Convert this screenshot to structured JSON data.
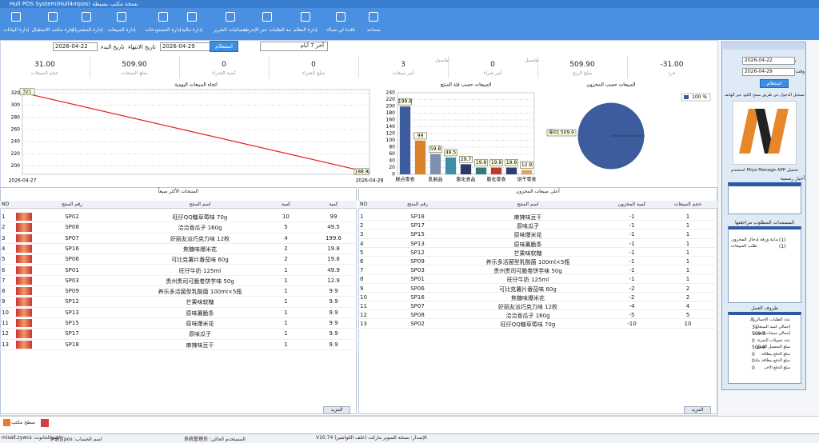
{
  "window_title": "Hull POS System(Hull4mpos) نسخة مكتب بسيطة",
  "toolbar": [
    "إدارة البيانات",
    "إدارة مكتب الاستقبال",
    "إدارة المشتريات",
    "إدارة المبيعات",
    "إدارة المستودعات",
    "إدارة مالية",
    "إحصائيات التقرير",
    "منصة الطلبات عبر الإنترنت",
    "إدارة النظام",
    "نافذة لي شباك",
    "مساعد"
  ],
  "filter": {
    "start_label": "تاريخ البدء",
    "start": "2026-04-22",
    "end_label": "تاريخ الانتهاء",
    "end": "2026-04-29",
    "query": "استعلام",
    "range": "آخر 7 أيام"
  },
  "stats": [
    {
      "value": "31.00",
      "label": "حجم المبيعات"
    },
    {
      "value": "509.90",
      "label": "مبلغ المبيعات"
    },
    {
      "value": "0",
      "label": "كمية الشراء"
    },
    {
      "value": "0",
      "label": "مبلغ الشراء"
    },
    {
      "value": "3",
      "label": "أمر مبيعات",
      "detail": "تفاصيل"
    },
    {
      "value": "0",
      "label": "أمر شراء",
      "detail": "تفاصيل"
    },
    {
      "value": "509.90",
      "label": "مبلغ الربح"
    },
    {
      "value": "-31.00",
      "label": "جرد"
    }
  ],
  "chart_data": [
    {
      "type": "line",
      "title": "اتجاه المبيعات اليومية",
      "categories": [
        "2026-04-27",
        "2026-04-28"
      ],
      "values": [
        321,
        188.9
      ],
      "color": "#e02020",
      "ylim": [
        186,
        326
      ],
      "yticks": [
        200,
        220,
        240,
        260,
        280,
        300,
        320
      ],
      "grid": true
    },
    {
      "type": "bar",
      "title": "المبيعات حسب فئة المنتج",
      "categories": [
        "糕点零食",
        null,
        "乳制品",
        null,
        "膨化食品",
        null,
        "膨化零食",
        null,
        "饼干零食"
      ],
      "values": [
        199.6,
        99,
        59.8,
        49.5,
        29.7,
        19.8,
        19.8,
        19.8,
        12.9
      ],
      "colors": [
        "#3d5c9e",
        "#d9822b",
        "#7f8fb0",
        "#3f8ea8",
        "#2b3a6b",
        "#2d7e7a",
        "#c0392b",
        "#2c3e70",
        "#e3a35a"
      ],
      "ylim": [
        0,
        240
      ],
      "yticks": [
        0,
        20,
        40,
        60,
        80,
        100,
        120,
        140,
        160,
        180,
        200,
        220,
        240
      ],
      "grid": true
    },
    {
      "type": "pie",
      "title": "المبيعات حسب المخزون",
      "categories": [
        "库01"
      ],
      "values": [
        100
      ],
      "value_labels": [
        "100 %"
      ],
      "amounts": [
        509.9
      ],
      "colors": [
        "#3d5c9e"
      ]
    }
  ],
  "top_products": {
    "title": "المنتجات الأكثر مبيعاً",
    "headers": [
      "NO",
      "رقم المنتج",
      "اسم المنتج",
      "كمية",
      "كمية"
    ],
    "rows": [
      [
        1,
        "SP02",
        "旺仔QQ糖草莓味 70g",
        10,
        99
      ],
      [
        2,
        "SP08",
        "洽洽香瓜子 160g",
        5,
        49.5
      ],
      [
        3,
        "SP07",
        "好丽友派巧克力味 12枚",
        4,
        199.6
      ],
      [
        4,
        "SP16",
        "焦糖味爆米花",
        2,
        19.8
      ],
      [
        5,
        "SP06",
        "可比克薯片番茄味 60g",
        2,
        19.8
      ],
      [
        6,
        "SP01",
        "旺仔牛奶 125ml",
        1,
        49.9
      ],
      [
        7,
        "SP03",
        "贵州贵司可脆卷饼芋味 50g",
        1,
        12.9
      ],
      [
        8,
        "SP09",
        "养乐多活菌型乳酸菌 100ml×5瓶",
        1,
        9.9
      ],
      [
        9,
        "SP12",
        "芒果味软糖",
        1,
        9.9
      ],
      [
        10,
        "SP13",
        "原味薯脆条",
        1,
        9.9
      ],
      [
        11,
        "SP15",
        "原味爆米花",
        1,
        9.9
      ],
      [
        12,
        "SP17",
        "原味瓜子",
        1,
        9.9
      ],
      [
        13,
        "SP18",
        "麻辣味豆干",
        1,
        9.9
      ]
    ],
    "more": "المزيد"
  },
  "stock_table": {
    "title": "أعلى مبيعات المخزون",
    "headers": [
      "NO",
      "رقم المنتج",
      "اسم المنتج",
      "كمية المخزون",
      "حجم المبيعات"
    ],
    "rows": [
      [
        1,
        "SP18",
        "麻辣味豆干",
        -1,
        1
      ],
      [
        2,
        "SP17",
        "原味瓜子",
        -1,
        1
      ],
      [
        3,
        "SP15",
        "原味爆米花",
        -1,
        1
      ],
      [
        4,
        "SP13",
        "原味薯脆条",
        -1,
        1
      ],
      [
        5,
        "SP12",
        "芒果味软糖",
        -1,
        1
      ],
      [
        6,
        "SP09",
        "养乐多活菌型乳酸菌 100ml×5瓶",
        -1,
        1
      ],
      [
        7,
        "SP03",
        "贵州贵司可脆卷饼芋味 50g",
        -1,
        1
      ],
      [
        8,
        "SP01",
        "旺仔牛奶 125ml",
        -1,
        1
      ],
      [
        9,
        "SP06",
        "可比克薯片番茄味 60g",
        -2,
        2
      ],
      [
        10,
        "SP16",
        "焦糖味爆米花",
        -2,
        2
      ],
      [
        11,
        "SP07",
        "好丽友派巧克力味 12枚",
        -4,
        4
      ],
      [
        12,
        "SP08",
        "洽洽香瓜子 160g",
        -5,
        5
      ],
      [
        13,
        "SP02",
        "旺仔QQ糖草莓味 70g",
        -10,
        10
      ]
    ],
    "more": "المزيد"
  },
  "sidebar": {
    "start_label": "وقت البدء",
    "start": "2026-04-22",
    "end_label": "وقت النهاية",
    "end": "2026-04-29",
    "query": "استعلام",
    "scan": "تسجيل الدخول عن طريق مسح الكود عبر الهاتف المحمول",
    "app": "تحميل Miya Manage APP استخدم",
    "news": "أخبار رسمية",
    "review_title": "المستندات المطلوب مراجعتها",
    "review": [
      {
        "label": "بداية ورقة إدخال المخزون",
        "count": "(1)"
      },
      {
        "label": "طلب المبيعات",
        "count": "(1)"
      }
    ],
    "work_title": "ظروف العمل",
    "work": [
      {
        "label": "عدد الطلبات الإجمالي اليوم",
        "value": "1"
      },
      {
        "label": "إجمالي كمية المبيعات",
        "value": "31"
      },
      {
        "label": "إجمالي مبيعات التجزئة",
        "value": "509.9"
      },
      {
        "label": "عدد تحويلات التجزئة",
        "value": "0"
      },
      {
        "label": "مبلغ التحصيل النقدي",
        "value": "509.9"
      },
      {
        "label": "مبلغ الدفع ببطاقة",
        "value": "0"
      },
      {
        "label": "مبلغ الدفع ببطاقة بنك",
        "value": "0"
      },
      {
        "label": "مبلغ الدفع الآخر",
        "value": "0"
      }
    ]
  },
  "taskbar": "سطح مكتب",
  "status": [
    "اسم الحانوت: misall.zywcs",
    "اسم الحساب: 多语言pos",
    "المستخدم الحالي: 系统管理员",
    "الإصدار: نسخة السوبر ماركت (خلف الكواشير) V10.74"
  ]
}
